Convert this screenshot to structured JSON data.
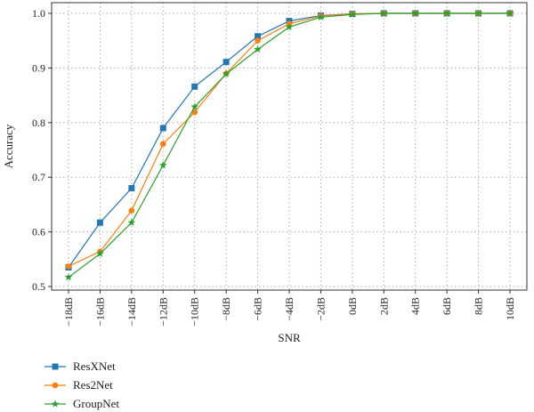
{
  "chart_data": {
    "type": "line",
    "title": "",
    "xlabel": "SNR",
    "ylabel": "Accuracy",
    "categories": [
      "−18dB",
      "−16dB",
      "−14dB",
      "−12dB",
      "−10dB",
      "−8dB",
      "−6dB",
      "−4dB",
      "−2dB",
      "0dB",
      "2dB",
      "4dB",
      "6dB",
      "8dB",
      "10dB"
    ],
    "ylim": [
      0.5,
      1.0
    ],
    "yticks": [
      "0.5",
      "0.6",
      "0.7",
      "0.8",
      "0.9",
      "1.0"
    ],
    "grid": true,
    "legend_position": "bottom-left",
    "series": [
      {
        "name": "ResXNet",
        "color": "#1f77b4",
        "marker": "square",
        "values": [
          0.535,
          0.617,
          0.68,
          0.79,
          0.866,
          0.911,
          0.958,
          0.986,
          0.996,
          0.999,
          1.0,
          1.0,
          1.0,
          1.0,
          1.0
        ]
      },
      {
        "name": "Res2Net",
        "color": "#ff7f0e",
        "marker": "circle",
        "values": [
          0.537,
          0.564,
          0.639,
          0.761,
          0.819,
          0.89,
          0.95,
          0.981,
          0.995,
          0.999,
          1.0,
          1.0,
          1.0,
          1.0,
          1.0
        ]
      },
      {
        "name": "GroupNet",
        "color": "#2ca02c",
        "marker": "star",
        "values": [
          0.517,
          0.56,
          0.617,
          0.722,
          0.829,
          0.889,
          0.934,
          0.975,
          0.993,
          0.998,
          1.0,
          1.0,
          1.0,
          1.0,
          1.0
        ]
      }
    ]
  }
}
